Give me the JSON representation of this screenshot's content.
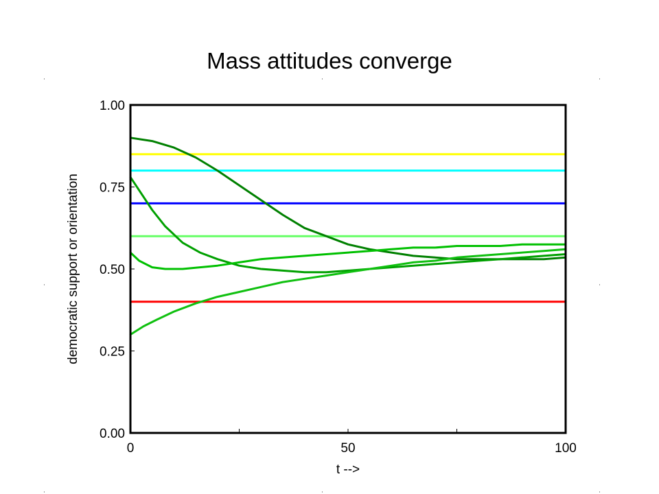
{
  "chart_data": {
    "type": "line",
    "title": "Mass attitudes converge",
    "xlabel": "t -->",
    "ylabel": "democratic support or orientation",
    "xlim": [
      0,
      100
    ],
    "ylim": [
      0,
      1
    ],
    "x_ticks": [
      0,
      25,
      50,
      75,
      100
    ],
    "x_tick_labels": [
      "0",
      "50",
      "100"
    ],
    "x_tick_label_values": [
      0,
      50,
      100
    ],
    "y_ticks": [
      0,
      0.25,
      0.5,
      0.75,
      1.0
    ],
    "y_tick_labels": [
      "0.00",
      "0.25",
      "0.50",
      "0.75",
      "1.00"
    ],
    "grid": false,
    "legend": "none",
    "series": [
      {
        "color": "#ffff00",
        "x": [
          0,
          100
        ],
        "y": [
          0.85,
          0.85
        ]
      },
      {
        "color": "#00ffff",
        "x": [
          0,
          100
        ],
        "y": [
          0.8,
          0.8
        ]
      },
      {
        "color": "#0000ff",
        "x": [
          0,
          100
        ],
        "y": [
          0.7,
          0.7
        ]
      },
      {
        "color": "#66ff66",
        "x": [
          0,
          100
        ],
        "y": [
          0.6,
          0.6
        ]
      },
      {
        "color": "#ff0000",
        "x": [
          0,
          100
        ],
        "y": [
          0.4,
          0.4
        ]
      },
      {
        "color": "#008000",
        "x": [
          0,
          5,
          10,
          15,
          20,
          25,
          30,
          35,
          40,
          45,
          50,
          55,
          60,
          65,
          70,
          75,
          80,
          85,
          90,
          95,
          100
        ],
        "y": [
          0.9,
          0.89,
          0.87,
          0.84,
          0.8,
          0.755,
          0.71,
          0.665,
          0.625,
          0.6,
          0.575,
          0.56,
          0.55,
          0.54,
          0.535,
          0.53,
          0.53,
          0.53,
          0.53,
          0.53,
          0.535
        ]
      },
      {
        "color": "#00a000",
        "x": [
          0,
          2,
          5,
          8,
          12,
          16,
          20,
          25,
          30,
          35,
          40,
          45,
          50,
          55,
          60,
          65,
          70,
          75,
          80,
          85,
          90,
          95,
          100
        ],
        "y": [
          0.78,
          0.74,
          0.68,
          0.63,
          0.58,
          0.55,
          0.53,
          0.51,
          0.5,
          0.495,
          0.49,
          0.49,
          0.495,
          0.5,
          0.505,
          0.51,
          0.515,
          0.52,
          0.525,
          0.53,
          0.535,
          0.54,
          0.545
        ]
      },
      {
        "color": "#00c000",
        "x": [
          0,
          2,
          5,
          8,
          12,
          16,
          20,
          25,
          30,
          35,
          40,
          45,
          50,
          55,
          60,
          65,
          70,
          75,
          80,
          85,
          90,
          95,
          100
        ],
        "y": [
          0.55,
          0.525,
          0.505,
          0.5,
          0.5,
          0.505,
          0.51,
          0.52,
          0.53,
          0.535,
          0.54,
          0.545,
          0.55,
          0.555,
          0.56,
          0.565,
          0.565,
          0.57,
          0.57,
          0.57,
          0.575,
          0.575,
          0.575
        ]
      },
      {
        "color": "#10c010",
        "x": [
          0,
          3,
          6,
          10,
          15,
          20,
          25,
          30,
          35,
          40,
          45,
          50,
          55,
          60,
          65,
          70,
          75,
          80,
          85,
          90,
          95,
          100
        ],
        "y": [
          0.3,
          0.325,
          0.345,
          0.37,
          0.395,
          0.415,
          0.43,
          0.445,
          0.46,
          0.47,
          0.48,
          0.49,
          0.5,
          0.51,
          0.52,
          0.525,
          0.535,
          0.54,
          0.545,
          0.55,
          0.555,
          0.56
        ]
      }
    ]
  }
}
